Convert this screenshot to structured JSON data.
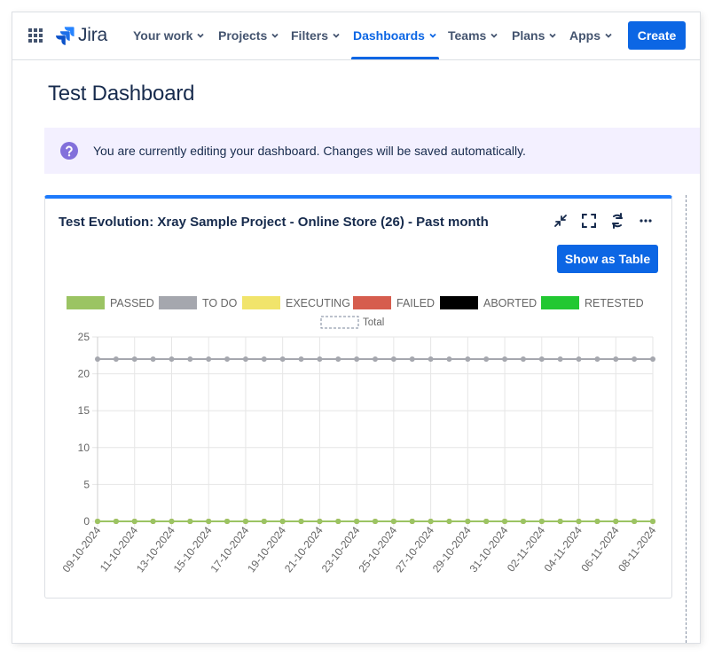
{
  "nav": {
    "logo_text": "Jira",
    "items": [
      {
        "label": "Your work"
      },
      {
        "label": "Projects"
      },
      {
        "label": "Filters"
      },
      {
        "label": "Dashboards",
        "active": true
      },
      {
        "label": "Teams"
      },
      {
        "label": "Plans"
      },
      {
        "label": "Apps"
      }
    ],
    "create_label": "Create"
  },
  "page": {
    "title": "Test Dashboard"
  },
  "banner": {
    "text": "You are currently editing your dashboard. Changes will be saved automatically.",
    "icon": "question-circle-icon",
    "icon_color": "#8270db"
  },
  "gadget": {
    "title": "Test Evolution: Xray Sample Project - Online Store (26) - Past month",
    "show_table_label": "Show as Table",
    "actions": [
      "minimize-icon",
      "fullscreen-icon",
      "refresh-icon",
      "more-icon"
    ]
  },
  "chart_data": {
    "type": "line",
    "title": "",
    "xlabel": "",
    "ylabel": "",
    "ylim": [
      0,
      25
    ],
    "yticks": [
      0,
      5,
      10,
      15,
      20,
      25
    ],
    "grid": true,
    "legend_position": "top",
    "x": [
      "09-10-2024",
      "10-10-2024",
      "11-10-2024",
      "12-10-2024",
      "13-10-2024",
      "14-10-2024",
      "15-10-2024",
      "16-10-2024",
      "17-10-2024",
      "18-10-2024",
      "19-10-2024",
      "20-10-2024",
      "21-10-2024",
      "22-10-2024",
      "23-10-2024",
      "24-10-2024",
      "25-10-2024",
      "26-10-2024",
      "27-10-2024",
      "28-10-2024",
      "29-10-2024",
      "30-10-2024",
      "31-10-2024",
      "01-11-2024",
      "02-11-2024",
      "03-11-2024",
      "04-11-2024",
      "05-11-2024",
      "06-11-2024",
      "07-11-2024",
      "08-11-2024"
    ],
    "x_tick_labels": [
      "09-10-2024",
      "11-10-2024",
      "13-10-2024",
      "15-10-2024",
      "17-10-2024",
      "19-10-2024",
      "21-10-2024",
      "23-10-2024",
      "25-10-2024",
      "27-10-2024",
      "29-10-2024",
      "31-10-2024",
      "02-11-2024",
      "04-11-2024",
      "06-11-2024",
      "08-11-2024"
    ],
    "series": [
      {
        "name": "PASSED",
        "color": "#9bc463",
        "values": [
          0,
          0,
          0,
          0,
          0,
          0,
          0,
          0,
          0,
          0,
          0,
          0,
          0,
          0,
          0,
          0,
          0,
          0,
          0,
          0,
          0,
          0,
          0,
          0,
          0,
          0,
          0,
          0,
          0,
          0,
          0
        ]
      },
      {
        "name": "TO DO",
        "color": "#a5a7ae",
        "values": [
          22,
          22,
          22,
          22,
          22,
          22,
          22,
          22,
          22,
          22,
          22,
          22,
          22,
          22,
          22,
          22,
          22,
          22,
          22,
          22,
          22,
          22,
          22,
          22,
          22,
          22,
          22,
          22,
          22,
          22,
          22
        ]
      },
      {
        "name": "EXECUTING",
        "color": "#f1e46b",
        "values": [
          0,
          0,
          0,
          0,
          0,
          0,
          0,
          0,
          0,
          0,
          0,
          0,
          0,
          0,
          0,
          0,
          0,
          0,
          0,
          0,
          0,
          0,
          0,
          0,
          0,
          0,
          0,
          0,
          0,
          0,
          0
        ]
      },
      {
        "name": "FAILED",
        "color": "#d65d4e",
        "values": [
          0,
          0,
          0,
          0,
          0,
          0,
          0,
          0,
          0,
          0,
          0,
          0,
          0,
          0,
          0,
          0,
          0,
          0,
          0,
          0,
          0,
          0,
          0,
          0,
          0,
          0,
          0,
          0,
          0,
          0,
          0
        ]
      },
      {
        "name": "ABORTED",
        "color": "#000000",
        "values": [
          0,
          0,
          0,
          0,
          0,
          0,
          0,
          0,
          0,
          0,
          0,
          0,
          0,
          0,
          0,
          0,
          0,
          0,
          0,
          0,
          0,
          0,
          0,
          0,
          0,
          0,
          0,
          0,
          0,
          0,
          0
        ]
      },
      {
        "name": "RETESTED",
        "color": "#22c832",
        "values": [
          0,
          0,
          0,
          0,
          0,
          0,
          0,
          0,
          0,
          0,
          0,
          0,
          0,
          0,
          0,
          0,
          0,
          0,
          0,
          0,
          0,
          0,
          0,
          0,
          0,
          0,
          0,
          0,
          0,
          0,
          0
        ]
      }
    ],
    "total_legend": {
      "name": "Total",
      "style": "dashed"
    }
  }
}
